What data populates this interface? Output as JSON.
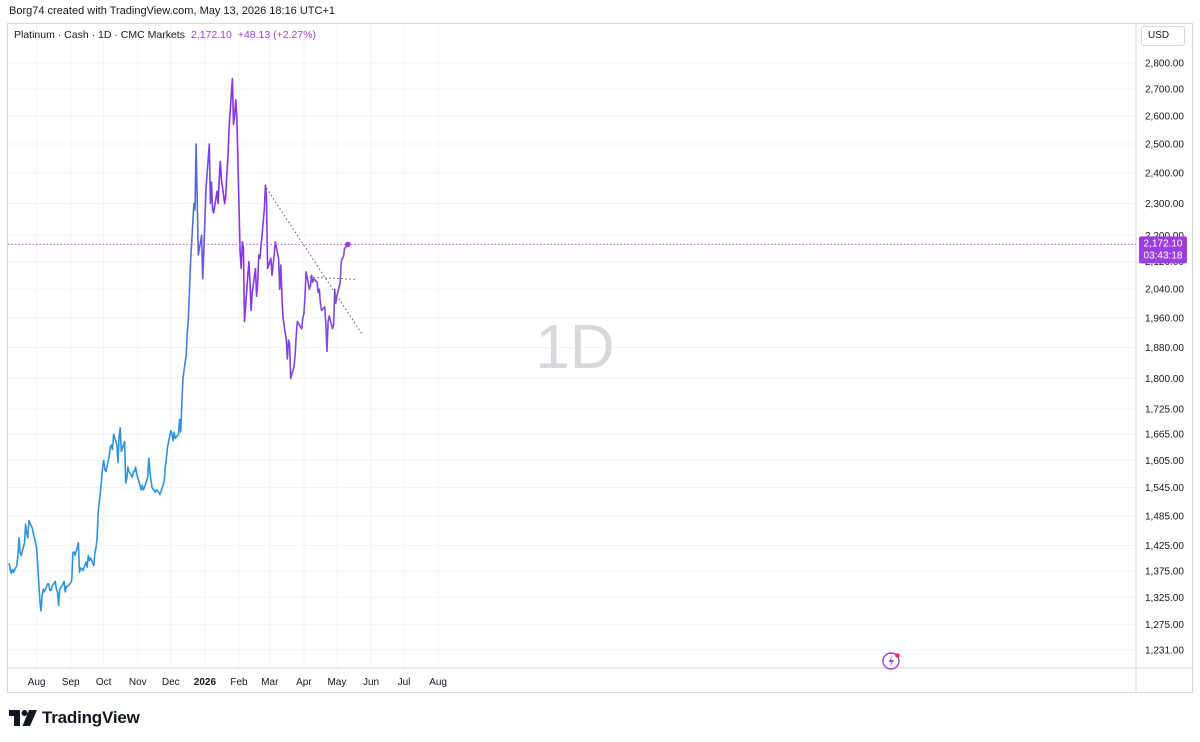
{
  "header": {
    "created_text": "Borg74 created with TradingView.com, May 13, 2026 18:16 UTC+1"
  },
  "legend": {
    "symbol_text": "Platinum · Cash · 1D · CMC Markets",
    "last_value": "2,172.10",
    "change": "+48.13 (+2.27%)"
  },
  "currency_button": "USD",
  "watermark": "1D",
  "price_tag": {
    "price": "2,172.10",
    "countdown": "03:43:18"
  },
  "footer": {
    "brand": "TradingView"
  },
  "colors": {
    "line_start": "#2e93da",
    "line_end": "#a020f0",
    "price_line": "#c54ee8",
    "price_tag_bg": "#9b3fe0",
    "trendline": "#555555"
  },
  "chart_data": {
    "type": "line",
    "title": "",
    "xlabel": "",
    "ylabel": "",
    "scale": "log",
    "ylim": [
      1200,
      2860
    ],
    "y_ticks": [
      "2,800.00",
      "2,700.00",
      "2,600.00",
      "2,500.00",
      "2,400.00",
      "2,300.00",
      "2,200.00",
      "2,120.00",
      "2,040.00",
      "1,960.00",
      "1,880.00",
      "1,800.00",
      "1,725.00",
      "1,665.00",
      "1,605.00",
      "1,545.00",
      "1,485.00",
      "1,425.00",
      "1,375.00",
      "1,325.00",
      "1,275.00",
      "1,231.00"
    ],
    "x_ticks": [
      {
        "label": "Aug",
        "date": "2025-08-01"
      },
      {
        "label": "Sep",
        "date": "2025-09-01"
      },
      {
        "label": "Oct",
        "date": "2025-10-01"
      },
      {
        "label": "Nov",
        "date": "2025-11-01"
      },
      {
        "label": "Dec",
        "date": "2025-12-01"
      },
      {
        "label": "2026",
        "date": "2026-01-01"
      },
      {
        "label": "Feb",
        "date": "2026-02-01"
      },
      {
        "label": "Mar",
        "date": "2026-03-01"
      },
      {
        "label": "Apr",
        "date": "2026-04-01"
      },
      {
        "label": "May",
        "date": "2026-05-01"
      },
      {
        "label": "Jun",
        "date": "2026-06-01"
      },
      {
        "label": "Jul",
        "date": "2026-07-01"
      },
      {
        "label": "Aug",
        "date": "2026-08-01"
      }
    ],
    "series": [
      {
        "points": [
          [
            "2025-07-07",
            1390
          ],
          [
            "2025-07-08",
            1378
          ],
          [
            "2025-07-09",
            1370
          ],
          [
            "2025-07-10",
            1378
          ],
          [
            "2025-07-11",
            1372
          ],
          [
            "2025-07-14",
            1385
          ],
          [
            "2025-07-15",
            1405
          ],
          [
            "2025-07-16",
            1440
          ],
          [
            "2025-07-17",
            1410
          ],
          [
            "2025-07-18",
            1405
          ],
          [
            "2025-07-21",
            1430
          ],
          [
            "2025-07-22",
            1468
          ],
          [
            "2025-07-23",
            1450
          ],
          [
            "2025-07-24",
            1440
          ],
          [
            "2025-07-25",
            1475
          ],
          [
            "2025-07-28",
            1460
          ],
          [
            "2025-07-29",
            1450
          ],
          [
            "2025-07-30",
            1440
          ],
          [
            "2025-07-31",
            1430
          ],
          [
            "2025-08-01",
            1420
          ],
          [
            "2025-08-04",
            1318
          ],
          [
            "2025-08-05",
            1300
          ],
          [
            "2025-08-06",
            1328
          ],
          [
            "2025-08-07",
            1340
          ],
          [
            "2025-08-08",
            1335
          ],
          [
            "2025-08-11",
            1350
          ],
          [
            "2025-08-12",
            1350
          ],
          [
            "2025-08-13",
            1338
          ],
          [
            "2025-08-14",
            1338
          ],
          [
            "2025-08-15",
            1345
          ],
          [
            "2025-08-18",
            1355
          ],
          [
            "2025-08-19",
            1340
          ],
          [
            "2025-08-20",
            1335
          ],
          [
            "2025-08-21",
            1310
          ],
          [
            "2025-08-22",
            1340
          ],
          [
            "2025-08-25",
            1350
          ],
          [
            "2025-08-26",
            1355
          ],
          [
            "2025-08-27",
            1335
          ],
          [
            "2025-08-28",
            1345
          ],
          [
            "2025-08-29",
            1345
          ],
          [
            "2025-09-01",
            1352
          ],
          [
            "2025-09-02",
            1358
          ],
          [
            "2025-09-03",
            1410
          ],
          [
            "2025-09-04",
            1412
          ],
          [
            "2025-09-05",
            1405
          ],
          [
            "2025-09-08",
            1430
          ],
          [
            "2025-09-09",
            1372
          ],
          [
            "2025-09-10",
            1380
          ],
          [
            "2025-09-11",
            1380
          ],
          [
            "2025-09-12",
            1375
          ],
          [
            "2025-09-15",
            1392
          ],
          [
            "2025-09-16",
            1382
          ],
          [
            "2025-09-17",
            1405
          ],
          [
            "2025-09-18",
            1395
          ],
          [
            "2025-09-19",
            1400
          ],
          [
            "2025-09-22",
            1385
          ],
          [
            "2025-09-23",
            1410
          ],
          [
            "2025-09-24",
            1420
          ],
          [
            "2025-09-25",
            1440
          ],
          [
            "2025-09-26",
            1492
          ],
          [
            "2025-09-29",
            1560
          ],
          [
            "2025-09-30",
            1590
          ],
          [
            "2025-10-01",
            1605
          ],
          [
            "2025-10-02",
            1585
          ],
          [
            "2025-10-03",
            1580
          ],
          [
            "2025-10-06",
            1615
          ],
          [
            "2025-10-07",
            1635
          ],
          [
            "2025-10-08",
            1640
          ],
          [
            "2025-10-09",
            1630
          ],
          [
            "2025-10-10",
            1665
          ],
          [
            "2025-10-13",
            1640
          ],
          [
            "2025-10-14",
            1600
          ],
          [
            "2025-10-15",
            1660
          ],
          [
            "2025-10-16",
            1680
          ],
          [
            "2025-10-17",
            1625
          ],
          [
            "2025-10-20",
            1648
          ],
          [
            "2025-10-21",
            1555
          ],
          [
            "2025-10-22",
            1565
          ],
          [
            "2025-10-23",
            1590
          ],
          [
            "2025-10-24",
            1580
          ],
          [
            "2025-10-27",
            1568
          ],
          [
            "2025-10-28",
            1580
          ],
          [
            "2025-10-29",
            1580
          ],
          [
            "2025-10-30",
            1590
          ],
          [
            "2025-10-31",
            1575
          ],
          [
            "2025-11-03",
            1550
          ],
          [
            "2025-11-04",
            1540
          ],
          [
            "2025-11-05",
            1550
          ],
          [
            "2025-11-06",
            1540
          ],
          [
            "2025-11-07",
            1545
          ],
          [
            "2025-11-10",
            1568
          ],
          [
            "2025-11-11",
            1610
          ],
          [
            "2025-11-12",
            1580
          ],
          [
            "2025-11-13",
            1560
          ],
          [
            "2025-11-14",
            1545
          ],
          [
            "2025-11-17",
            1535
          ],
          [
            "2025-11-18",
            1540
          ],
          [
            "2025-11-19",
            1538
          ],
          [
            "2025-11-20",
            1535
          ],
          [
            "2025-11-21",
            1530
          ],
          [
            "2025-11-24",
            1550
          ],
          [
            "2025-11-25",
            1560
          ],
          [
            "2025-11-26",
            1590
          ],
          [
            "2025-11-27",
            1610
          ],
          [
            "2025-11-28",
            1635
          ],
          [
            "2025-12-01",
            1673
          ],
          [
            "2025-12-02",
            1667
          ],
          [
            "2025-12-03",
            1650
          ],
          [
            "2025-12-04",
            1670
          ],
          [
            "2025-12-05",
            1655
          ],
          [
            "2025-12-08",
            1665
          ],
          [
            "2025-12-09",
            1700
          ],
          [
            "2025-12-10",
            1670
          ],
          [
            "2025-12-11",
            1735
          ],
          [
            "2025-12-12",
            1800
          ],
          [
            "2025-12-15",
            1860
          ],
          [
            "2025-12-16",
            1920
          ],
          [
            "2025-12-17",
            1960
          ],
          [
            "2025-12-18",
            2040
          ],
          [
            "2025-12-19",
            2120
          ],
          [
            "2025-12-22",
            2300
          ],
          [
            "2025-12-23",
            2280
          ],
          [
            "2025-12-24",
            2500
          ],
          [
            "2025-12-26",
            2140
          ],
          [
            "2025-12-29",
            2200
          ],
          [
            "2025-12-30",
            2070
          ],
          [
            "2025-12-31",
            2150
          ],
          [
            "2026-01-02",
            2350
          ],
          [
            "2026-01-05",
            2500
          ],
          [
            "2026-01-06",
            2300
          ],
          [
            "2026-01-07",
            2370
          ],
          [
            "2026-01-08",
            2280
          ],
          [
            "2026-01-09",
            2270
          ],
          [
            "2026-01-12",
            2340
          ],
          [
            "2026-01-13",
            2300
          ],
          [
            "2026-01-14",
            2380
          ],
          [
            "2026-01-15",
            2440
          ],
          [
            "2026-01-16",
            2380
          ],
          [
            "2026-01-19",
            2300
          ],
          [
            "2026-01-20",
            2330
          ],
          [
            "2026-01-21",
            2400
          ],
          [
            "2026-01-22",
            2460
          ],
          [
            "2026-01-23",
            2560
          ],
          [
            "2026-01-26",
            2740
          ],
          [
            "2026-01-27",
            2570
          ],
          [
            "2026-01-28",
            2600
          ],
          [
            "2026-01-29",
            2660
          ],
          [
            "2026-01-30",
            2600
          ],
          [
            "2026-02-02",
            2150
          ],
          [
            "2026-02-03",
            2100
          ],
          [
            "2026-02-04",
            2180
          ],
          [
            "2026-02-05",
            2160
          ],
          [
            "2026-02-06",
            1950
          ],
          [
            "2026-02-09",
            2080
          ],
          [
            "2026-02-10",
            2120
          ],
          [
            "2026-02-11",
            2060
          ],
          [
            "2026-02-12",
            1980
          ],
          [
            "2026-02-13",
            2030
          ],
          [
            "2026-02-16",
            2100
          ],
          [
            "2026-02-17",
            2020
          ],
          [
            "2026-02-18",
            2060
          ],
          [
            "2026-02-19",
            2140
          ],
          [
            "2026-02-20",
            2130
          ],
          [
            "2026-02-23",
            2240
          ],
          [
            "2026-02-24",
            2280
          ],
          [
            "2026-02-25",
            2360
          ],
          [
            "2026-02-26",
            2320
          ],
          [
            "2026-02-27",
            2100
          ],
          [
            "2026-03-02",
            2130
          ],
          [
            "2026-03-03",
            2080
          ],
          [
            "2026-03-04",
            2110
          ],
          [
            "2026-03-05",
            2140
          ],
          [
            "2026-03-06",
            2180
          ],
          [
            "2026-03-09",
            2130
          ],
          [
            "2026-03-10",
            2040
          ],
          [
            "2026-03-11",
            2110
          ],
          [
            "2026-03-12",
            2020
          ],
          [
            "2026-03-13",
            1960
          ],
          [
            "2026-03-16",
            1900
          ],
          [
            "2026-03-17",
            1850
          ],
          [
            "2026-03-18",
            1900
          ],
          [
            "2026-03-19",
            1890
          ],
          [
            "2026-03-20",
            1800
          ],
          [
            "2026-03-23",
            1830
          ],
          [
            "2026-03-24",
            1860
          ],
          [
            "2026-03-25",
            1910
          ],
          [
            "2026-03-26",
            1950
          ],
          [
            "2026-03-27",
            1945
          ],
          [
            "2026-03-30",
            1930
          ],
          [
            "2026-03-31",
            1960
          ],
          [
            "2026-04-01",
            1970
          ],
          [
            "2026-04-02",
            2020
          ],
          [
            "2026-04-03",
            2090
          ],
          [
            "2026-04-06",
            2040
          ],
          [
            "2026-04-07",
            2050
          ],
          [
            "2026-04-08",
            2080
          ],
          [
            "2026-04-09",
            2060
          ],
          [
            "2026-04-10",
            2070
          ],
          [
            "2026-04-13",
            2060
          ],
          [
            "2026-04-14",
            2030
          ],
          [
            "2026-04-15",
            2040
          ],
          [
            "2026-04-16",
            2000
          ],
          [
            "2026-04-17",
            1980
          ],
          [
            "2026-04-20",
            1990
          ],
          [
            "2026-04-21",
            1940
          ],
          [
            "2026-04-22",
            1870
          ],
          [
            "2026-04-23",
            1950
          ],
          [
            "2026-04-24",
            1965
          ],
          [
            "2026-04-27",
            1930
          ],
          [
            "2026-04-28",
            1940
          ],
          [
            "2026-04-29",
            2040
          ],
          [
            "2026-04-30",
            2000
          ],
          [
            "2026-05-01",
            2020
          ],
          [
            "2026-05-04",
            2060
          ],
          [
            "2026-05-05",
            2120
          ],
          [
            "2026-05-06",
            2130
          ],
          [
            "2026-05-07",
            2135
          ],
          [
            "2026-05-08",
            2160
          ],
          [
            "2026-05-11",
            2172.1
          ]
        ]
      }
    ],
    "trendlines": [
      {
        "from": [
          "2026-02-26",
          2350
        ],
        "to": [
          "2026-05-24",
          1915
        ],
        "style": "dotted"
      },
      {
        "from": [
          "2026-04-06",
          2075
        ],
        "to": [
          "2026-05-19",
          2068
        ],
        "style": "dotted"
      }
    ],
    "last_price": 2172.1
  }
}
